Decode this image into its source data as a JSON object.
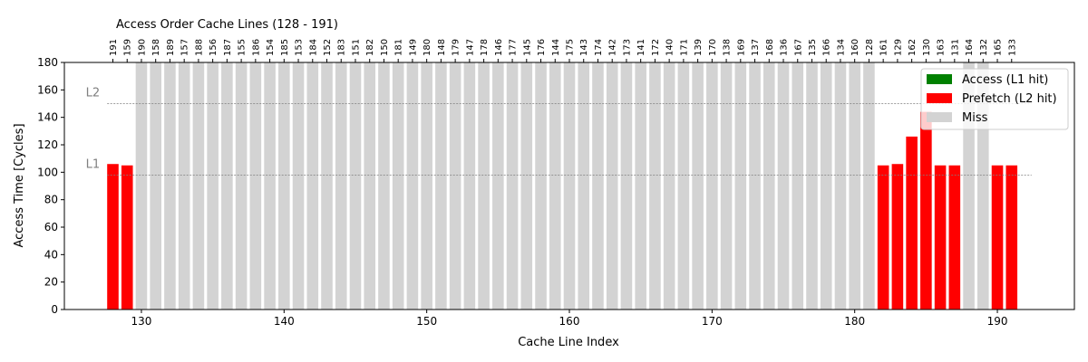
{
  "chart_data": {
    "type": "bar",
    "title": "Access Order Cache Lines (128 - 191)",
    "xlabel": "Cache Line Index",
    "ylabel": "Access Time [Cycles]",
    "xlim": [
      124.6,
      195.4
    ],
    "ylim": [
      0,
      180
    ],
    "xticks": [
      130,
      140,
      150,
      160,
      170,
      180,
      190
    ],
    "yticks": [
      0,
      20,
      40,
      60,
      80,
      100,
      120,
      140,
      160,
      180
    ],
    "grid": false,
    "legend_position": "top-right",
    "legend": [
      {
        "label": "Access (L1 hit)",
        "color": "#008000"
      },
      {
        "label": "Prefetch (L2 hit)",
        "color": "#ff0000"
      },
      {
        "label": "Miss",
        "color": "#d3d3d3"
      }
    ],
    "reference_lines": [
      {
        "label": "L2",
        "y": 150,
        "color": "#808080"
      },
      {
        "label": "L1",
        "y": 98,
        "color": "#808080"
      }
    ],
    "access_order": [
      191,
      159,
      190,
      158,
      189,
      157,
      188,
      156,
      187,
      155,
      186,
      154,
      185,
      153,
      184,
      152,
      183,
      151,
      182,
      150,
      181,
      149,
      180,
      148,
      179,
      147,
      178,
      146,
      177,
      145,
      176,
      144,
      175,
      143,
      174,
      142,
      173,
      141,
      172,
      140,
      171,
      139,
      170,
      138,
      169,
      137,
      168,
      136,
      167,
      135,
      166,
      134,
      160,
      128,
      161,
      129,
      162,
      130,
      163,
      131,
      164,
      132,
      165,
      133
    ],
    "bars": [
      {
        "x": 128,
        "value": 106,
        "status": "prefetch"
      },
      {
        "x": 129,
        "value": 105,
        "status": "prefetch"
      },
      {
        "x": 130,
        "value": 180,
        "status": "miss"
      },
      {
        "x": 131,
        "value": 180,
        "status": "miss"
      },
      {
        "x": 132,
        "value": 180,
        "status": "miss"
      },
      {
        "x": 133,
        "value": 180,
        "status": "miss"
      },
      {
        "x": 134,
        "value": 180,
        "status": "miss"
      },
      {
        "x": 135,
        "value": 180,
        "status": "miss"
      },
      {
        "x": 136,
        "value": 180,
        "status": "miss"
      },
      {
        "x": 137,
        "value": 180,
        "status": "miss"
      },
      {
        "x": 138,
        "value": 180,
        "status": "miss"
      },
      {
        "x": 139,
        "value": 180,
        "status": "miss"
      },
      {
        "x": 140,
        "value": 180,
        "status": "miss"
      },
      {
        "x": 141,
        "value": 180,
        "status": "miss"
      },
      {
        "x": 142,
        "value": 180,
        "status": "miss"
      },
      {
        "x": 143,
        "value": 180,
        "status": "miss"
      },
      {
        "x": 144,
        "value": 180,
        "status": "miss"
      },
      {
        "x": 145,
        "value": 180,
        "status": "miss"
      },
      {
        "x": 146,
        "value": 180,
        "status": "miss"
      },
      {
        "x": 147,
        "value": 180,
        "status": "miss"
      },
      {
        "x": 148,
        "value": 180,
        "status": "miss"
      },
      {
        "x": 149,
        "value": 180,
        "status": "miss"
      },
      {
        "x": 150,
        "value": 180,
        "status": "miss"
      },
      {
        "x": 151,
        "value": 180,
        "status": "miss"
      },
      {
        "x": 152,
        "value": 180,
        "status": "miss"
      },
      {
        "x": 153,
        "value": 180,
        "status": "miss"
      },
      {
        "x": 154,
        "value": 180,
        "status": "miss"
      },
      {
        "x": 155,
        "value": 180,
        "status": "miss"
      },
      {
        "x": 156,
        "value": 180,
        "status": "miss"
      },
      {
        "x": 157,
        "value": 180,
        "status": "miss"
      },
      {
        "x": 158,
        "value": 180,
        "status": "miss"
      },
      {
        "x": 159,
        "value": 180,
        "status": "miss"
      },
      {
        "x": 160,
        "value": 180,
        "status": "miss"
      },
      {
        "x": 161,
        "value": 180,
        "status": "miss"
      },
      {
        "x": 162,
        "value": 180,
        "status": "miss"
      },
      {
        "x": 163,
        "value": 180,
        "status": "miss"
      },
      {
        "x": 164,
        "value": 180,
        "status": "miss"
      },
      {
        "x": 165,
        "value": 180,
        "status": "miss"
      },
      {
        "x": 166,
        "value": 180,
        "status": "miss"
      },
      {
        "x": 167,
        "value": 180,
        "status": "miss"
      },
      {
        "x": 168,
        "value": 180,
        "status": "miss"
      },
      {
        "x": 169,
        "value": 180,
        "status": "miss"
      },
      {
        "x": 170,
        "value": 180,
        "status": "miss"
      },
      {
        "x": 171,
        "value": 180,
        "status": "miss"
      },
      {
        "x": 172,
        "value": 180,
        "status": "miss"
      },
      {
        "x": 173,
        "value": 180,
        "status": "miss"
      },
      {
        "x": 174,
        "value": 180,
        "status": "miss"
      },
      {
        "x": 175,
        "value": 180,
        "status": "miss"
      },
      {
        "x": 176,
        "value": 180,
        "status": "miss"
      },
      {
        "x": 177,
        "value": 180,
        "status": "miss"
      },
      {
        "x": 178,
        "value": 180,
        "status": "miss"
      },
      {
        "x": 179,
        "value": 180,
        "status": "miss"
      },
      {
        "x": 180,
        "value": 180,
        "status": "miss"
      },
      {
        "x": 181,
        "value": 180,
        "status": "miss"
      },
      {
        "x": 182,
        "value": 105,
        "status": "prefetch"
      },
      {
        "x": 183,
        "value": 106,
        "status": "prefetch"
      },
      {
        "x": 184,
        "value": 126,
        "status": "prefetch"
      },
      {
        "x": 185,
        "value": 144,
        "status": "prefetch"
      },
      {
        "x": 186,
        "value": 105,
        "status": "prefetch"
      },
      {
        "x": 187,
        "value": 105,
        "status": "prefetch"
      },
      {
        "x": 188,
        "value": 180,
        "status": "miss"
      },
      {
        "x": 189,
        "value": 180,
        "status": "miss"
      },
      {
        "x": 190,
        "value": 105,
        "status": "prefetch"
      },
      {
        "x": 191,
        "value": 105,
        "status": "prefetch"
      }
    ]
  }
}
